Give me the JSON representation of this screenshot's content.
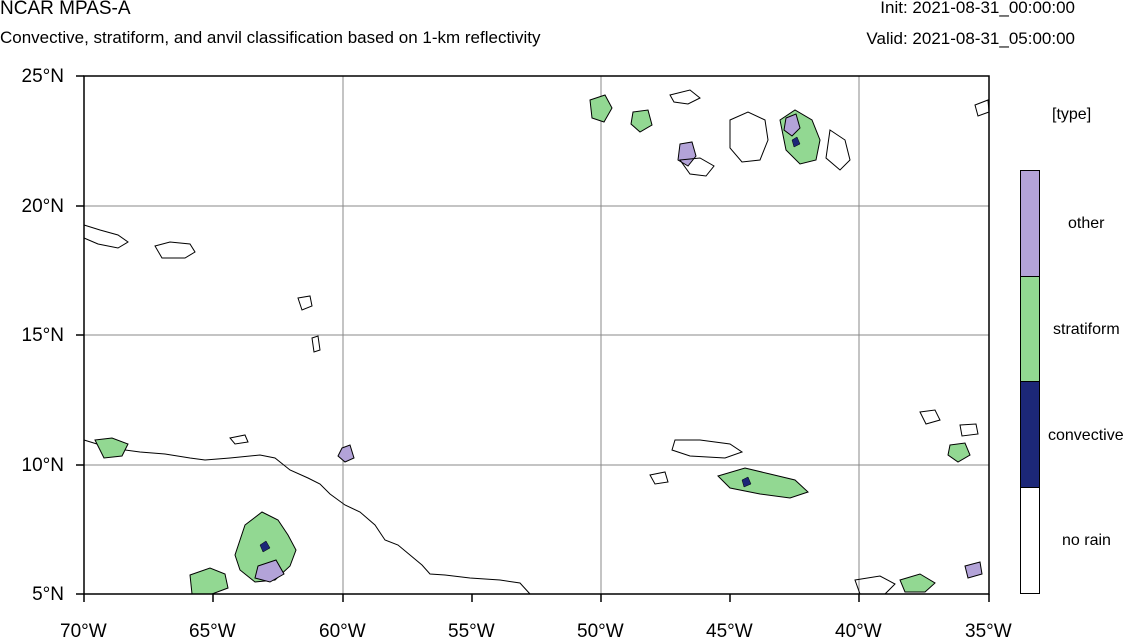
{
  "header": {
    "model": "NCAR MPAS-A",
    "subtitle": "Convective, stratiform, and anvil classification based on 1-km reflectivity",
    "init": "Init: 2021-08-31_00:00:00",
    "valid": "Valid: 2021-08-31_05:00:00"
  },
  "map": {
    "lat_labels": [
      "25°N",
      "20°N",
      "15°N",
      "10°N",
      "5°N"
    ],
    "lon_labels": [
      "70°W",
      "65°W",
      "60°W",
      "55°W",
      "50°W",
      "45°W",
      "40°W",
      "35°W"
    ],
    "lat_range": [
      5,
      25
    ],
    "lon_range": [
      -70,
      -35
    ],
    "grid": true
  },
  "legend": {
    "unit": "[type]",
    "items": [
      {
        "label": "other",
        "color": "#b3a3d8"
      },
      {
        "label": "stratiform",
        "color": "#92d892"
      },
      {
        "label": "convective",
        "color": "#1c2778"
      },
      {
        "label": "no rain",
        "color": "#ffffff"
      }
    ]
  }
}
